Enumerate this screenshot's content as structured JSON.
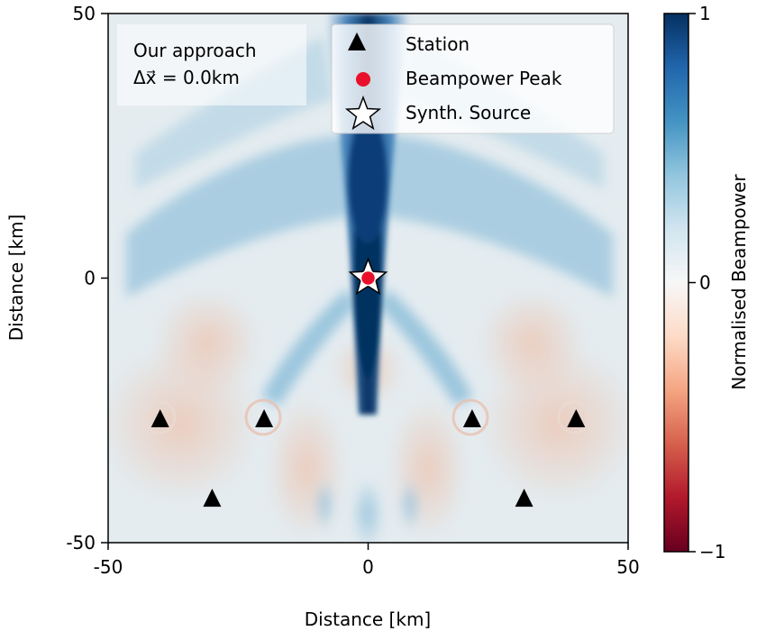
{
  "chart_data": {
    "type": "heatmap",
    "xlabel": "Distance [km]",
    "ylabel": "Distance [km]",
    "xlim": [
      -50,
      50
    ],
    "ylim": [
      -50,
      50
    ],
    "xticks": [
      {
        "value": -50,
        "label": "-50"
      },
      {
        "value": 0,
        "label": "0"
      },
      {
        "value": 50,
        "label": "50"
      }
    ],
    "yticks": [
      {
        "value": -50,
        "label": "-50"
      },
      {
        "value": 0,
        "label": "0"
      },
      {
        "value": 50,
        "label": "50"
      }
    ],
    "annotation": {
      "line1": "Our approach",
      "line2": "Δx⃗ = 0.0km"
    },
    "colorbar": {
      "label": "Normalised Beampower",
      "range": [
        -1,
        1
      ],
      "ticks": [
        {
          "value": 1,
          "label": "1"
        },
        {
          "value": 0,
          "label": "0"
        },
        {
          "value": -1,
          "label": "−1"
        }
      ],
      "colormap": [
        "#67001f",
        "#b2182b",
        "#d6604d",
        "#f4a582",
        "#fddbc7",
        "#f7f7f7",
        "#d1e5f0",
        "#92c5de",
        "#4393c3",
        "#2166ac",
        "#053061"
      ]
    },
    "legend": {
      "placement": "top-right",
      "entries": [
        {
          "label": "Station",
          "marker": "triangle",
          "color": "#000000"
        },
        {
          "label": "Beampower Peak",
          "marker": "circle",
          "color": "#e8102a"
        },
        {
          "label": "Synth. Source",
          "marker": "star",
          "color": "#ffffff"
        }
      ]
    },
    "stations": [
      {
        "x": -40,
        "y": -26.5
      },
      {
        "x": -20,
        "y": -26.5
      },
      {
        "x": 20,
        "y": -26.5
      },
      {
        "x": 40,
        "y": -26.5
      },
      {
        "x": -30,
        "y": -41.5
      },
      {
        "x": 30,
        "y": -41.5
      }
    ],
    "beampower_peak": {
      "x": 0,
      "y": 0
    },
    "synth_source": {
      "x": 0,
      "y": 0
    }
  }
}
